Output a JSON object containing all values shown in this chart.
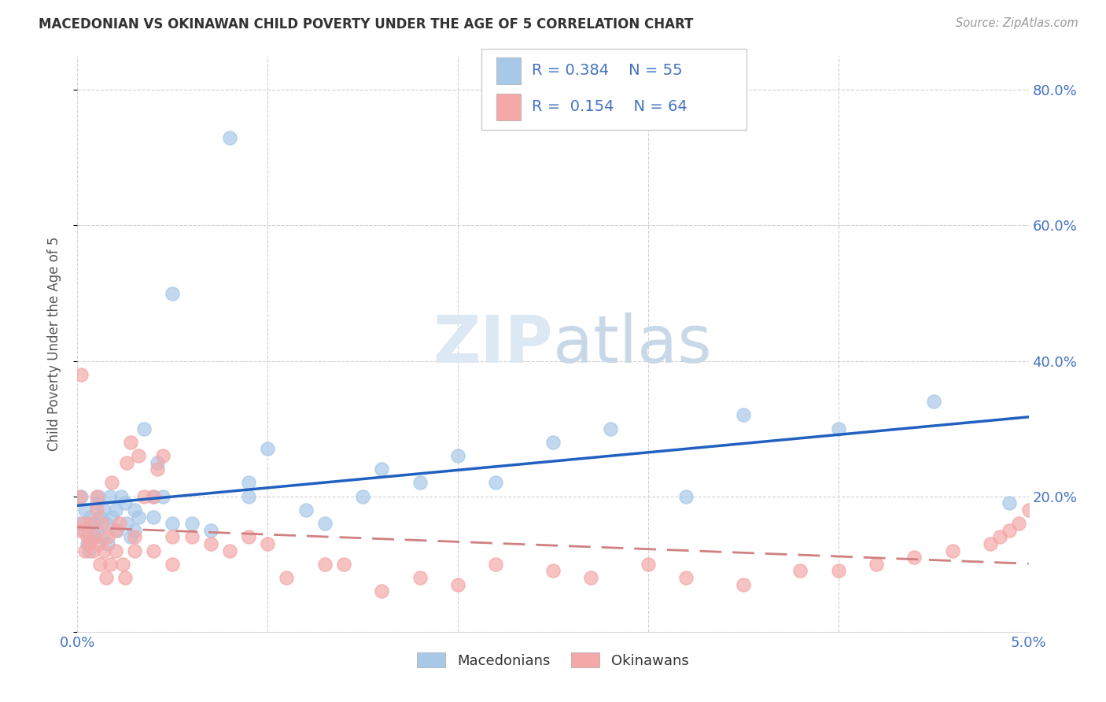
{
  "title": "MACEDONIAN VS OKINAWAN CHILD POVERTY UNDER THE AGE OF 5 CORRELATION CHART",
  "source_text": "Source: ZipAtlas.com",
  "ylabel": "Child Poverty Under the Age of 5",
  "xlim": [
    0.0,
    0.05
  ],
  "ylim": [
    0.0,
    0.85
  ],
  "yticks": [
    0.0,
    0.2,
    0.4,
    0.6,
    0.8
  ],
  "ytick_labels": [
    "",
    "20.0%",
    "40.0%",
    "60.0%",
    "80.0%"
  ],
  "xticks": [
    0.0,
    0.01,
    0.02,
    0.03,
    0.04,
    0.05
  ],
  "xtick_labels": [
    "0.0%",
    "",
    "",
    "",
    "",
    "5.0%"
  ],
  "macedonian_R": 0.384,
  "macedonian_N": 55,
  "okinawan_R": 0.154,
  "okinawan_N": 64,
  "blue_color": "#a8c8e8",
  "pink_color": "#f4a8a8",
  "blue_line_color": "#2060c0",
  "pink_line_color": "#d08080",
  "axis_tick_color": "#4472c4",
  "title_color": "#333333",
  "grid_color": "#cccccc",
  "watermark_color": "#dce8f4",
  "macedonians_x": [
    0.0001,
    0.0002,
    0.0003,
    0.0004,
    0.0005,
    0.0006,
    0.0007,
    0.0008,
    0.0009,
    0.001,
    0.001,
    0.0011,
    0.0012,
    0.0013,
    0.0014,
    0.0015,
    0.0016,
    0.0017,
    0.0018,
    0.002,
    0.0021,
    0.0023,
    0.0025,
    0.0026,
    0.0028,
    0.003,
    0.003,
    0.0032,
    0.0035,
    0.004,
    0.004,
    0.0042,
    0.0045,
    0.005,
    0.005,
    0.006,
    0.007,
    0.008,
    0.009,
    0.009,
    0.01,
    0.012,
    0.013,
    0.015,
    0.016,
    0.018,
    0.02,
    0.022,
    0.025,
    0.028,
    0.032,
    0.035,
    0.04,
    0.045,
    0.049
  ],
  "macedonians_y": [
    0.16,
    0.2,
    0.15,
    0.18,
    0.13,
    0.12,
    0.17,
    0.14,
    0.16,
    0.19,
    0.15,
    0.2,
    0.17,
    0.14,
    0.18,
    0.16,
    0.13,
    0.2,
    0.17,
    0.18,
    0.15,
    0.2,
    0.19,
    0.16,
    0.14,
    0.18,
    0.15,
    0.17,
    0.3,
    0.2,
    0.17,
    0.25,
    0.2,
    0.16,
    0.5,
    0.16,
    0.15,
    0.73,
    0.2,
    0.22,
    0.27,
    0.18,
    0.16,
    0.2,
    0.24,
    0.22,
    0.26,
    0.22,
    0.28,
    0.3,
    0.2,
    0.32,
    0.3,
    0.34,
    0.19
  ],
  "okinawans_x": [
    0.0001,
    0.0002,
    0.0002,
    0.0003,
    0.0004,
    0.0005,
    0.0006,
    0.0007,
    0.0008,
    0.0009,
    0.001,
    0.001,
    0.0011,
    0.0012,
    0.0013,
    0.0014,
    0.0015,
    0.0016,
    0.0017,
    0.0018,
    0.002,
    0.002,
    0.0022,
    0.0024,
    0.0025,
    0.0026,
    0.0028,
    0.003,
    0.003,
    0.0032,
    0.0035,
    0.004,
    0.004,
    0.0042,
    0.0045,
    0.005,
    0.005,
    0.006,
    0.007,
    0.008,
    0.009,
    0.01,
    0.011,
    0.013,
    0.014,
    0.016,
    0.018,
    0.02,
    0.022,
    0.025,
    0.027,
    0.03,
    0.032,
    0.035,
    0.038,
    0.04,
    0.042,
    0.044,
    0.046,
    0.048,
    0.0485,
    0.049,
    0.0495,
    0.05
  ],
  "okinawans_y": [
    0.2,
    0.38,
    0.15,
    0.16,
    0.12,
    0.14,
    0.13,
    0.16,
    0.12,
    0.14,
    0.18,
    0.2,
    0.13,
    0.1,
    0.16,
    0.12,
    0.08,
    0.14,
    0.1,
    0.22,
    0.15,
    0.12,
    0.16,
    0.1,
    0.08,
    0.25,
    0.28,
    0.14,
    0.12,
    0.26,
    0.2,
    0.12,
    0.2,
    0.24,
    0.26,
    0.14,
    0.1,
    0.14,
    0.13,
    0.12,
    0.14,
    0.13,
    0.08,
    0.1,
    0.1,
    0.06,
    0.08,
    0.07,
    0.1,
    0.09,
    0.08,
    0.1,
    0.08,
    0.07,
    0.09,
    0.09,
    0.1,
    0.11,
    0.12,
    0.13,
    0.14,
    0.15,
    0.16,
    0.18
  ]
}
